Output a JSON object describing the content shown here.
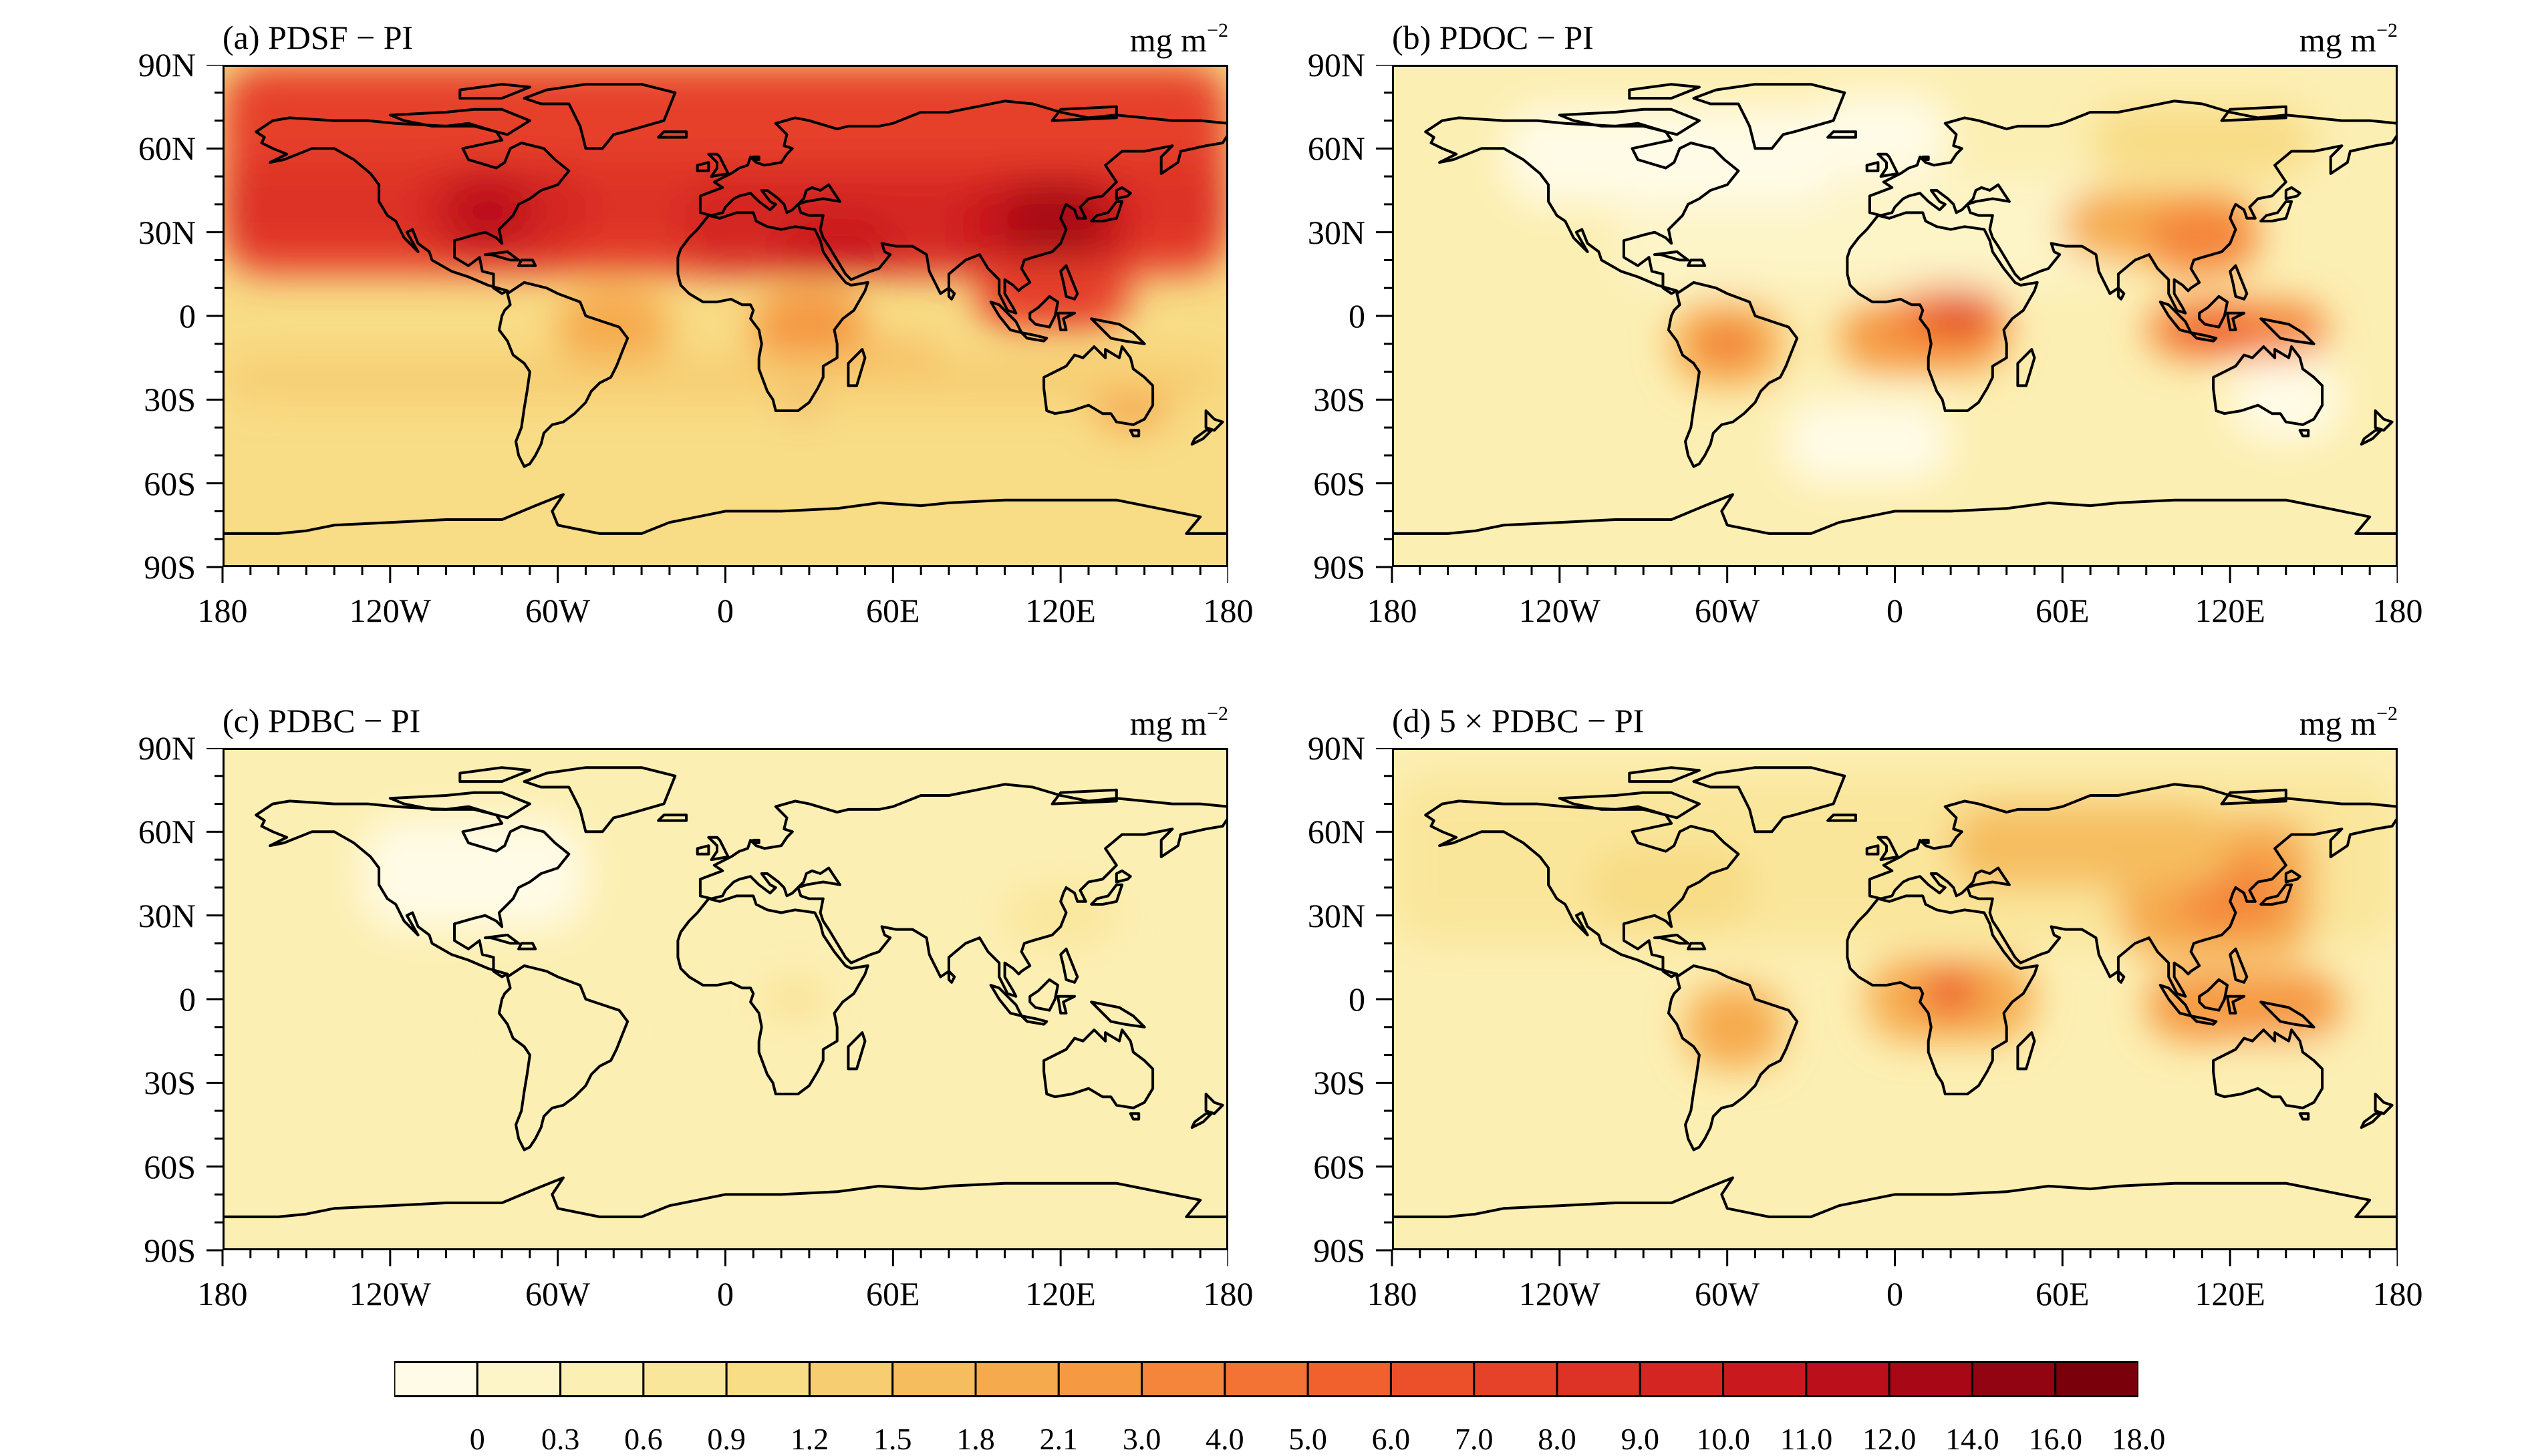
{
  "panels": [
    {
      "id": "a",
      "title": "(a) PDSF − PI",
      "unit": "mg m",
      "unit_exp": "−2"
    },
    {
      "id": "b",
      "title": "(b) PDOC − PI",
      "unit": "mg m",
      "unit_exp": "−2"
    },
    {
      "id": "c",
      "title": "(c) PDBC − PI",
      "unit": "mg m",
      "unit_exp": "−2"
    },
    {
      "id": "d",
      "title": "(d) 5 × PDBC − PI",
      "unit": "mg m",
      "unit_exp": "−2"
    }
  ],
  "lat_ticks": [
    "90N",
    "60N",
    "30N",
    "0",
    "30S",
    "60S",
    "90S"
  ],
  "lon_ticks": [
    "180",
    "120W",
    "60W",
    "0",
    "60E",
    "120E",
    "180"
  ],
  "colorbar": {
    "levels": [
      "0",
      "0.3",
      "0.6",
      "0.9",
      "1.2",
      "1.5",
      "1.8",
      "2.1",
      "3.0",
      "4.0",
      "5.0",
      "6.0",
      "7.0",
      "8.0",
      "9.0",
      "10.0",
      "11.0",
      "12.0",
      "14.0",
      "16.0",
      "18.0"
    ],
    "colors": [
      "#fffbe6",
      "#fdf4c8",
      "#fcefb3",
      "#fae69b",
      "#f8dc86",
      "#f7cd72",
      "#f6bd5f",
      "#f6aa4e",
      "#f59942",
      "#f4853a",
      "#f27333",
      "#f0612e",
      "#ec502b",
      "#e64129",
      "#dd3226",
      "#d42523",
      "#c9191f",
      "#bb0f1b",
      "#a80816",
      "#920411",
      "#7a000c"
    ]
  }
}
